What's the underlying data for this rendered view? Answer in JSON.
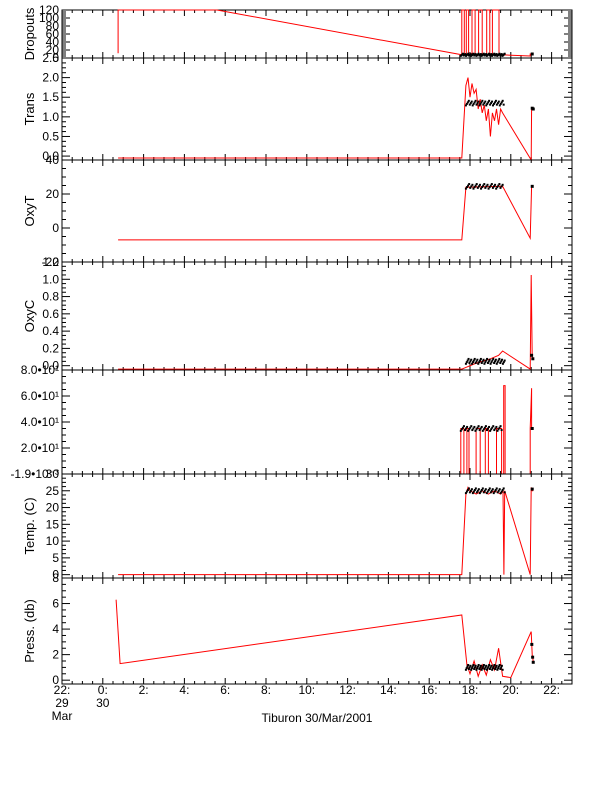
{
  "colors": {
    "line": "#ff0000",
    "points": "#000000",
    "axis": "#000000",
    "background": "#ffffff"
  },
  "x_axis": {
    "domain_hours": [
      -2,
      23
    ],
    "ticks": [
      {
        "h": -2,
        "lines": [
          "22:",
          "29",
          "Mar"
        ]
      },
      {
        "h": 0,
        "lines": [
          "0:",
          "30"
        ]
      },
      {
        "h": 2,
        "lines": [
          "2:"
        ]
      },
      {
        "h": 4,
        "lines": [
          "4:"
        ]
      },
      {
        "h": 6,
        "lines": [
          "6:"
        ]
      },
      {
        "h": 8,
        "lines": [
          "8:"
        ]
      },
      {
        "h": 10,
        "lines": [
          "10:"
        ]
      },
      {
        "h": 12,
        "lines": [
          "12:"
        ]
      },
      {
        "h": 14,
        "lines": [
          "14:"
        ]
      },
      {
        "h": 16,
        "lines": [
          "16:"
        ]
      },
      {
        "h": 18,
        "lines": [
          "18:"
        ]
      },
      {
        "h": 20,
        "lines": [
          "20:"
        ]
      },
      {
        "h": 22,
        "lines": [
          "22:"
        ]
      }
    ],
    "caption": "Tiburon 30/Mar/2001"
  },
  "chart_data": [
    {
      "type": "line",
      "ylabel": "Dropouts",
      "ylim": [
        0,
        120
      ],
      "ticks": [
        {
          "v": 0,
          "t": "0"
        },
        {
          "v": 20,
          "t": "20"
        },
        {
          "v": 40,
          "t": "40"
        },
        {
          "v": 60,
          "t": "60"
        },
        {
          "v": 80,
          "t": "80"
        },
        {
          "v": 100,
          "t": "100"
        },
        {
          "v": 120,
          "t": "120"
        }
      ],
      "series": [
        {
          "x": [
            0.75,
            0.75,
            5.6,
            17.6,
            17.6,
            17.72,
            17.72,
            17.82,
            17.82,
            17.93,
            17.93,
            18.1,
            18.1,
            18.25,
            18.25,
            18.42,
            18.42,
            18.6,
            18.6,
            18.82,
            18.82,
            18.97,
            18.97,
            19.1,
            19.1,
            19.42,
            19.42,
            19.55,
            19.55,
            20.95,
            20.95,
            21.08
          ],
          "y": [
            12,
            120,
            120,
            8,
            120,
            120,
            8,
            8,
            120,
            120,
            8,
            8,
            120,
            120,
            8,
            8,
            120,
            120,
            8,
            8,
            120,
            120,
            8,
            8,
            120,
            120,
            8,
            8,
            8,
            5,
            10,
            10
          ]
        }
      ],
      "points": {
        "x0": 17.55,
        "x1": 19.7,
        "y": 8,
        "n": 60,
        "extra": [
          [
            21.05,
            10
          ]
        ]
      }
    },
    {
      "type": "line",
      "ylabel": "Trans",
      "ylim": [
        -0.1,
        2.5
      ],
      "ticks": [
        {
          "v": 0,
          "t": "0.0"
        },
        {
          "v": 0.5,
          "t": "0.5"
        },
        {
          "v": 1.0,
          "t": "1.0"
        },
        {
          "v": 1.5,
          "t": "1.5"
        },
        {
          "v": 2.0,
          "t": "2.0"
        },
        {
          "v": 2.5,
          "t": "2.5"
        }
      ],
      "series": [
        {
          "x": [
            0.75,
            17.6,
            17.8,
            17.9,
            18.0,
            18.1,
            18.2,
            18.3,
            18.4,
            18.5,
            18.6,
            18.7,
            18.8,
            18.9,
            19.0,
            19.1,
            19.2,
            19.3,
            19.4,
            19.5,
            19.6,
            21.0,
            21.02,
            21.06,
            21.1
          ],
          "y": [
            -0.05,
            -0.05,
            1.8,
            2.0,
            1.5,
            1.85,
            1.6,
            1.7,
            1.2,
            1.45,
            1.1,
            1.3,
            0.9,
            1.2,
            0.5,
            1.1,
            0.9,
            1.2,
            0.8,
            1.2,
            1.1,
            -0.1,
            1.25,
            1.2,
            1.2
          ]
        }
      ],
      "points": {
        "x0": 17.8,
        "x1": 19.65,
        "y": 1.35,
        "n": 40,
        "extra": [
          [
            21.05,
            1.22
          ],
          [
            21.1,
            1.2
          ]
        ]
      }
    },
    {
      "type": "line",
      "ylabel": "OxyT",
      "ylim": [
        -20,
        40
      ],
      "ticks": [
        {
          "v": -20,
          "t": "-20"
        },
        {
          "v": 0,
          "t": "0"
        },
        {
          "v": 20,
          "t": "20"
        },
        {
          "v": 40,
          "t": "40"
        }
      ],
      "series": [
        {
          "x": [
            0.75,
            17.6,
            17.8,
            19.6,
            20.95,
            21.02,
            21.1
          ],
          "y": [
            -7,
            -7,
            24,
            24.5,
            -6,
            24.5,
            24.5
          ]
        }
      ],
      "points": {
        "x0": 17.8,
        "x1": 19.6,
        "y": 24.5,
        "n": 35,
        "extra": [
          [
            21.05,
            24.5
          ]
        ]
      }
    },
    {
      "type": "line",
      "ylabel": "OxyC",
      "ylim": [
        -0.05,
        1.2
      ],
      "ticks": [
        {
          "v": 0,
          "t": "0.0"
        },
        {
          "v": 0.2,
          "t": "0.2"
        },
        {
          "v": 0.4,
          "t": "0.4"
        },
        {
          "v": 0.6,
          "t": "0.6"
        },
        {
          "v": 0.8,
          "t": "0.8"
        },
        {
          "v": 1.0,
          "t": "1.0"
        },
        {
          "v": 1.2,
          "t": "1.2"
        }
      ],
      "series": [
        {
          "x": [
            0.75,
            17.6,
            17.8,
            18.2,
            18.6,
            19.0,
            19.4,
            19.6,
            20.95,
            21.0,
            21.05,
            21.1
          ],
          "y": [
            -0.04,
            -0.04,
            -0.02,
            0.02,
            0.05,
            0.08,
            0.12,
            0.17,
            -0.04,
            1.05,
            0.1,
            0.08
          ]
        }
      ],
      "points": {
        "x0": 17.8,
        "x1": 19.7,
        "y": 0.05,
        "n": 45,
        "extra": [
          [
            21.02,
            0.12
          ],
          [
            21.08,
            0.08
          ]
        ]
      }
    },
    {
      "type": "line",
      "ylabel": "",
      "ylim": [
        -0.0019,
        80
      ],
      "ticks": [
        {
          "v": -0.0019,
          "t": "-1.9•10⁻³"
        },
        {
          "v": 20,
          "t": "2.0•10¹"
        },
        {
          "v": 40,
          "t": "4.0•10¹"
        },
        {
          "v": 60,
          "t": "6.0•10¹"
        },
        {
          "v": 80,
          "t": "8.0•10¹"
        }
      ],
      "series": [
        {
          "x": [
            0.75,
            17.55,
            17.55,
            17.7,
            17.7,
            17.85,
            17.85,
            17.95,
            17.95,
            18.3,
            18.3,
            18.5,
            18.5,
            18.75,
            18.75,
            18.9,
            18.9,
            19.3,
            19.3,
            19.55,
            19.55,
            19.65,
            19.65,
            19.72,
            19.72,
            20.95,
            20.95,
            21.02,
            21.02,
            21.1
          ],
          "y": [
            0,
            0,
            35,
            35,
            0,
            0,
            35,
            35,
            0,
            0,
            35,
            35,
            0,
            0,
            35,
            35,
            0,
            0,
            35,
            35,
            0,
            0,
            68,
            68,
            0,
            0,
            35,
            66,
            35,
            35
          ]
        }
      ],
      "points": {
        "x0": 17.55,
        "x1": 19.55,
        "y": 35,
        "n": 40,
        "extra": [
          [
            21.05,
            35
          ]
        ]
      }
    },
    {
      "type": "line",
      "ylabel": "Temp. (C)",
      "ylim": [
        -1,
        30
      ],
      "ticks": [
        {
          "v": 0,
          "t": "0"
        },
        {
          "v": 5,
          "t": "5"
        },
        {
          "v": 10,
          "t": "10"
        },
        {
          "v": 15,
          "t": "15"
        },
        {
          "v": 20,
          "t": "20"
        },
        {
          "v": 25,
          "t": "25"
        },
        {
          "v": 30,
          "t": "30"
        }
      ],
      "series": [
        {
          "x": [
            0.75,
            17.6,
            17.8,
            17.9,
            18.0,
            18.3,
            18.6,
            18.9,
            19.2,
            19.5,
            19.62,
            19.66,
            19.7,
            20.95,
            21.0,
            21.05,
            21.1
          ],
          "y": [
            0,
            0,
            24,
            26,
            25,
            24,
            25,
            24,
            25,
            24,
            25,
            0,
            25,
            0,
            26,
            25,
            25
          ]
        }
      ],
      "points": {
        "x0": 17.8,
        "x1": 19.7,
        "y": 25,
        "n": 40,
        "extra": [
          [
            21.05,
            25.5
          ]
        ]
      }
    },
    {
      "type": "line",
      "ylabel": "Press. (db)",
      "ylim": [
        -0.3,
        8
      ],
      "ticks": [
        {
          "v": 0,
          "t": "0"
        },
        {
          "v": 2,
          "t": "2"
        },
        {
          "v": 4,
          "t": "4"
        },
        {
          "v": 6,
          "t": "6"
        },
        {
          "v": 8,
          "t": "8"
        }
      ],
      "series": [
        {
          "x": [
            0.65,
            0.85,
            17.6,
            17.85,
            18.0,
            18.2,
            18.4,
            18.6,
            18.8,
            19.0,
            19.2,
            19.4,
            19.6,
            20.0,
            21.0,
            21.05,
            21.1
          ],
          "y": [
            6.3,
            1.3,
            5.1,
            1.2,
            0.5,
            1.5,
            0.3,
            1.2,
            0.4,
            1.6,
            0.8,
            2.5,
            0.3,
            0.2,
            3.8,
            2.0,
            1.5
          ]
        }
      ],
      "points": {
        "x0": 17.8,
        "x1": 19.6,
        "y": 1.0,
        "n": 50,
        "extra": [
          [
            21.03,
            2.8
          ],
          [
            21.07,
            1.8
          ],
          [
            21.1,
            1.4
          ]
        ]
      }
    }
  ]
}
